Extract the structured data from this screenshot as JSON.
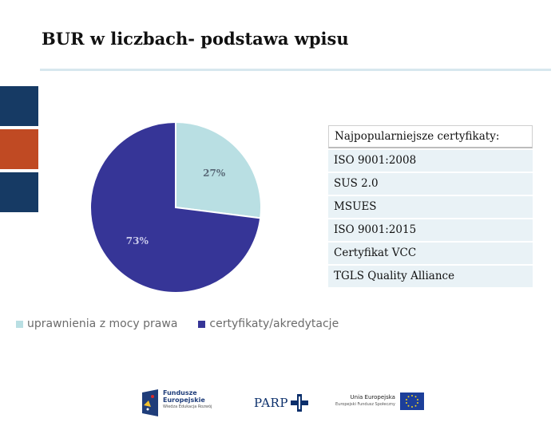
{
  "header": {
    "title": "BUR w liczbach- podstawa wpisu"
  },
  "colors": {
    "side_dark": "#163a64",
    "side_accent": "#c04a23",
    "slice_light": "#b9dfe3",
    "slice_dark": "#363597"
  },
  "chart_data": {
    "type": "pie",
    "categories": [
      "uprawnienia z mocy prawa",
      "certyfikaty/akredytacje"
    ],
    "values": [
      27,
      73
    ],
    "data_labels": [
      "27%",
      "73%"
    ],
    "colors": [
      "#b9dfe3",
      "#363597"
    ],
    "legend_position": "bottom-left"
  },
  "certificates": {
    "header": "Najpopularniejsze certyfikaty:",
    "items": [
      "ISO 9001:2008",
      "SUS 2.0",
      "MSUES",
      "ISO 9001:2015",
      "Certyfikat VCC",
      "TGLS Quality Alliance"
    ]
  },
  "footer": {
    "fe_line1": "Fundusze",
    "fe_line2": "Europejskie",
    "fe_line3": "Wiedza Edukacja Rozwój",
    "parp": "PARP",
    "ue_line1": "Unia Europejska",
    "ue_line2": "Europejski Fundusz Społeczny"
  }
}
